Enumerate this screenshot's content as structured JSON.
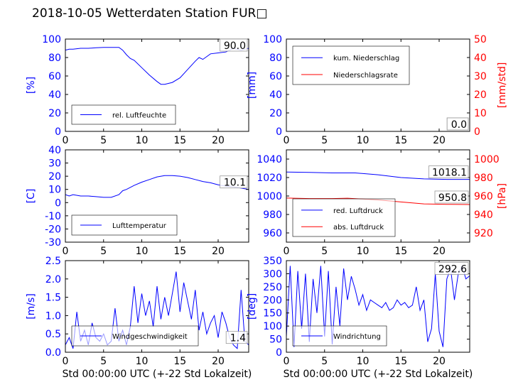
{
  "title": "2018-10-05 Wetterdaten Station FUR□",
  "colors": {
    "left_axis": "#0000ff",
    "right_axis": "#ff0000",
    "text": "#000000"
  },
  "chart_data": [
    {
      "id": "humidity",
      "type": "line",
      "xlim": [
        0,
        24
      ],
      "xticks": [
        0,
        5,
        10,
        15,
        20
      ],
      "ylim": [
        0,
        100
      ],
      "yticks": [
        0,
        20,
        40,
        60,
        80,
        100
      ],
      "ylabel": "[%]",
      "grid": false,
      "legend_position": "lower-left",
      "value_box": "90.0",
      "series": [
        {
          "name": "rel. Luftfeuchte",
          "color": "#0000ff",
          "axis": "left",
          "x": [
            0,
            0.5,
            1,
            2,
            3,
            4,
            5,
            6,
            7,
            7.5,
            8,
            8.5,
            9,
            10,
            11,
            12,
            12.5,
            13,
            14,
            15,
            16,
            17,
            17.5,
            18,
            19,
            20,
            21,
            22,
            23,
            24
          ],
          "y": [
            88,
            89,
            89,
            90,
            90,
            90.5,
            91,
            91,
            91,
            88,
            83,
            79,
            77,
            69,
            61,
            54,
            51,
            51,
            53,
            58,
            67,
            76,
            80,
            78,
            84,
            85,
            86,
            90,
            88,
            90
          ]
        }
      ]
    },
    {
      "id": "precipitation",
      "type": "line",
      "xlim": [
        0,
        24
      ],
      "xticks": [
        0,
        5,
        10,
        15,
        20
      ],
      "ylim": [
        0,
        100
      ],
      "yticks": [
        0,
        20,
        40,
        60,
        80,
        100
      ],
      "ylabel": "[mm]",
      "y2lim": [
        0,
        50
      ],
      "y2ticks": [
        0,
        10,
        20,
        30,
        40,
        50
      ],
      "y2label": "[mm/std]",
      "grid": false,
      "legend_position": "top-left",
      "value_box": "0.0",
      "value_box2": "0.0",
      "series": [
        {
          "name": "kum. Niederschlag",
          "color": "#0000ff",
          "axis": "left",
          "x": [
            0,
            24
          ],
          "y": [
            0,
            0
          ]
        },
        {
          "name": "Niederschlagsrate",
          "color": "#ff0000",
          "axis": "right",
          "x": [
            0,
            24
          ],
          "y": [
            0,
            0
          ]
        }
      ]
    },
    {
      "id": "temperature",
      "type": "line",
      "xlim": [
        0,
        24
      ],
      "xticks": [
        0,
        5,
        10,
        15,
        20
      ],
      "ylim": [
        -30,
        40
      ],
      "yticks": [
        -30,
        -20,
        -10,
        0,
        10,
        20,
        30,
        40
      ],
      "ylabel": "[C]",
      "grid": false,
      "legend_position": "lower-left",
      "value_box": "10.1",
      "series": [
        {
          "name": "Lufttemperatur",
          "color": "#0000ff",
          "axis": "left",
          "x": [
            0,
            0.5,
            1,
            2,
            3,
            4,
            5,
            6,
            7,
            7.5,
            8,
            9,
            10,
            11,
            12,
            13,
            14,
            15,
            16,
            17,
            18,
            19,
            20,
            21,
            22,
            23,
            24
          ],
          "y": [
            6,
            5,
            6,
            5,
            5,
            4.5,
            4,
            4,
            6,
            9,
            10,
            13,
            15.5,
            17.5,
            19.5,
            20.5,
            20.5,
            20,
            19,
            17.5,
            16,
            15,
            13.5,
            12.5,
            12,
            11,
            10
          ]
        }
      ]
    },
    {
      "id": "pressure",
      "type": "line",
      "xlim": [
        0,
        24
      ],
      "xticks": [
        0,
        5,
        10,
        15,
        20
      ],
      "ylim": [
        950,
        1050
      ],
      "yticks": [
        960,
        980,
        1000,
        1020,
        1040
      ],
      "y2lim": [
        910,
        1010
      ],
      "y2ticks": [
        920,
        940,
        960,
        980,
        1000
      ],
      "y2label": "[hPa]",
      "grid": false,
      "legend_position": "lower-left",
      "value_box": "1018.1",
      "value_box2": "950.8",
      "series": [
        {
          "name": "red. Luftdruck",
          "color": "#0000ff",
          "axis": "left",
          "x": [
            0,
            3,
            6,
            9,
            12,
            15,
            18,
            21,
            24
          ],
          "y": [
            1026,
            1025.5,
            1025,
            1025,
            1023,
            1020,
            1018.5,
            1018,
            1018
          ]
        },
        {
          "name": "abs. Luftdruck",
          "color": "#ff0000",
          "axis": "right",
          "x": [
            0,
            3,
            6,
            8,
            12,
            15,
            18,
            21,
            24
          ],
          "y": [
            957.8,
            957.2,
            957.2,
            957.6,
            955.8,
            953.5,
            951.5,
            951,
            950.8
          ]
        }
      ]
    },
    {
      "id": "windspeed",
      "type": "line",
      "xlim": [
        0,
        24
      ],
      "xticks": [
        0,
        5,
        10,
        15,
        20
      ],
      "ylim": [
        0,
        2.5
      ],
      "yticks": [
        0.0,
        0.5,
        1.0,
        1.5,
        2.0,
        2.5
      ],
      "ylabel": "[m/s]",
      "xlabel": "Std 00:00:00 UTC (+-22 Std Lokalzeit)",
      "grid": false,
      "legend_position": "lower-left",
      "value_box": "1.4",
      "series": [
        {
          "name": "Windgeschwindigkeit",
          "color": "#0000ff",
          "axis": "left",
          "x": [
            0,
            0.5,
            1,
            1.5,
            2,
            2.5,
            3,
            3.5,
            4,
            4.5,
            5,
            5.5,
            6,
            6.5,
            7,
            7.5,
            8,
            8.5,
            9,
            9.5,
            10,
            10.5,
            11,
            11.5,
            12,
            12.5,
            13,
            13.5,
            14,
            14.5,
            15,
            15.5,
            16,
            16.5,
            17,
            17.5,
            18,
            18.5,
            19,
            19.5,
            20,
            20.5,
            21,
            21.5,
            22,
            22.5,
            23,
            23.5,
            24
          ],
          "y": [
            0.2,
            0.4,
            0.1,
            1.1,
            0.3,
            0.6,
            0.2,
            0.8,
            0.4,
            0.3,
            0.5,
            0.2,
            0.3,
            1.2,
            0.3,
            0.6,
            0.2,
            0.7,
            1.8,
            0.8,
            1.6,
            1.0,
            1.4,
            0.7,
            1.8,
            0.9,
            1.5,
            1.0,
            1.6,
            2.2,
            1.1,
            1.9,
            1.4,
            0.9,
            1.7,
            0.6,
            1.1,
            0.5,
            0.8,
            1.0,
            0.4,
            1.1,
            0.8,
            0.4,
            0.2,
            0.1,
            1.7,
            0.3,
            0.2
          ]
        }
      ]
    },
    {
      "id": "winddirection",
      "type": "line",
      "xlim": [
        0,
        24
      ],
      "xticks": [
        0,
        5,
        10,
        15,
        20
      ],
      "ylim": [
        0,
        350
      ],
      "yticks": [
        0,
        50,
        100,
        150,
        200,
        250,
        300,
        350
      ],
      "ylabel": "[deg]",
      "xlabel": "Std 00:00:00 UTC (+-22 Std Lokalzeit)",
      "grid": false,
      "legend_position": "lower-left",
      "value_box": "292.6",
      "series": [
        {
          "name": "Windrichtung",
          "color": "#0000ff",
          "axis": "left",
          "x": [
            0,
            0.5,
            1,
            1.5,
            2,
            2.5,
            3,
            3.5,
            4,
            4.5,
            5,
            5.5,
            6,
            6.5,
            7,
            7.5,
            8,
            8.5,
            9,
            9.5,
            10,
            10.5,
            11,
            11.5,
            12,
            12.5,
            13,
            13.5,
            14,
            14.5,
            15,
            15.5,
            16,
            16.5,
            17,
            17.5,
            18,
            18.5,
            19,
            19.5,
            20,
            20.5,
            21,
            21.5,
            22,
            22.5,
            23,
            23.5,
            24
          ],
          "y": [
            60,
            330,
            20,
            310,
            90,
            300,
            40,
            280,
            150,
            330,
            60,
            310,
            30,
            250,
            100,
            320,
            200,
            290,
            240,
            180,
            220,
            160,
            200,
            190,
            180,
            170,
            190,
            160,
            170,
            200,
            180,
            190,
            170,
            180,
            250,
            160,
            200,
            40,
            90,
            300,
            80,
            20,
            280,
            320,
            200,
            300,
            330,
            280,
            292
          ]
        }
      ]
    }
  ]
}
